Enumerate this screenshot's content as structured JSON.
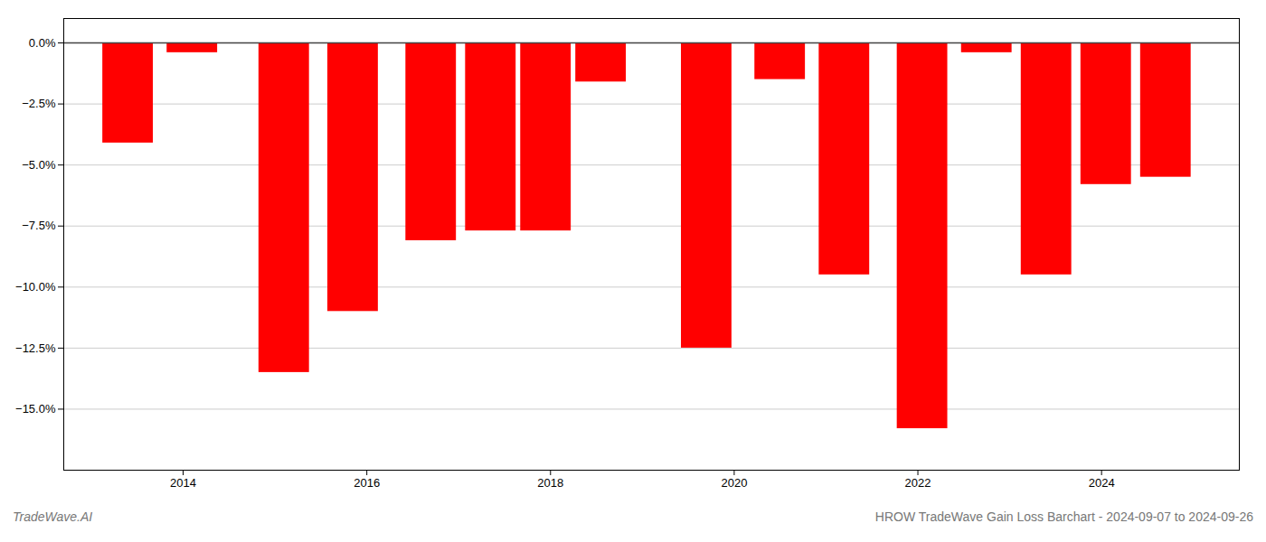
{
  "chart_data": {
    "type": "bar",
    "x": [
      2013.4,
      2014.1,
      2015.1,
      2015.85,
      2016.7,
      2017.35,
      2017.95,
      2018.55,
      2019.7,
      2020.5,
      2021.2,
      2022.05,
      2022.75,
      2023.4,
      2024.05,
      2024.7
    ],
    "values": [
      -4.1,
      -0.4,
      -13.5,
      -11.0,
      -8.1,
      -7.7,
      -7.7,
      -1.6,
      -12.5,
      -1.5,
      -9.5,
      -15.8,
      -0.4,
      -9.5,
      -5.8,
      -5.5
    ],
    "color": "#ff0000",
    "ylim": [
      -17.5,
      1.0
    ],
    "yticks": [
      {
        "value": 0.0,
        "label": "0.0%"
      },
      {
        "value": -2.5,
        "label": "−2.5%"
      },
      {
        "value": -5.0,
        "label": "−5.0%"
      },
      {
        "value": -7.5,
        "label": "−7.5%"
      },
      {
        "value": -10.0,
        "label": "−10.0%"
      },
      {
        "value": -12.5,
        "label": "−12.5%"
      },
      {
        "value": -15.0,
        "label": "−15.0%"
      }
    ],
    "xlim": [
      2012.7,
      2025.5
    ],
    "xticks": [
      2014,
      2016,
      2018,
      2020,
      2022,
      2024
    ],
    "grid": true,
    "annotations": [
      "TradeWave.AI",
      "HROW TradeWave Gain Loss Barchart - 2024-09-07 to 2024-09-26"
    ]
  }
}
